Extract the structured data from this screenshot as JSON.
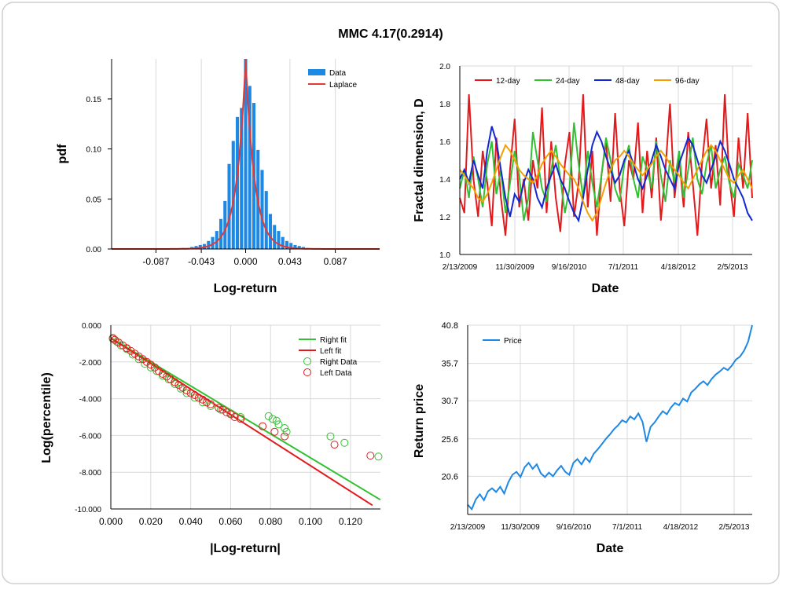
{
  "page_title": "MMC 4.17(0.2914)",
  "chart_data": [
    {
      "type": "bar",
      "xlabel": "Log-return",
      "ylabel": "pdf",
      "xlim": [
        -0.13,
        0.13
      ],
      "ylim": [
        0,
        0.19
      ],
      "x_ticks": [
        -0.087,
        -0.043,
        0.0,
        0.043,
        0.087
      ],
      "x_tick_labels": [
        "-0.087",
        "-0.043",
        "0.000",
        "0.043",
        "0.087"
      ],
      "y_ticks": [
        0,
        0.05,
        0.1,
        0.15
      ],
      "y_tick_labels": [
        "0.00",
        "0.05",
        "0.10",
        "0.15"
      ],
      "legend": {
        "position": "top-right",
        "entries": [
          "Data",
          "Laplace"
        ]
      },
      "series": [
        {
          "name": "Data",
          "type": "bar",
          "color": "#1e88e5",
          "x": [
            -0.06,
            -0.056,
            -0.052,
            -0.048,
            -0.044,
            -0.04,
            -0.036,
            -0.032,
            -0.028,
            -0.024,
            -0.02,
            -0.016,
            -0.012,
            -0.008,
            -0.004,
            0.0,
            0.004,
            0.008,
            0.012,
            0.016,
            0.02,
            0.024,
            0.028,
            0.032,
            0.036,
            0.04,
            0.044,
            0.048,
            0.052,
            0.056,
            0.06
          ],
          "values": [
            0.001,
            0.001,
            0.002,
            0.003,
            0.004,
            0.005,
            0.008,
            0.012,
            0.018,
            0.03,
            0.048,
            0.085,
            0.108,
            0.132,
            0.141,
            0.19,
            0.163,
            0.146,
            0.099,
            0.079,
            0.058,
            0.035,
            0.024,
            0.018,
            0.012,
            0.008,
            0.006,
            0.004,
            0.003,
            0.002,
            0.001
          ]
        },
        {
          "name": "Laplace",
          "type": "line",
          "color": "#e53935",
          "peak": 0.189,
          "center": 0.0,
          "scale": 0.0087
        }
      ]
    },
    {
      "type": "line",
      "xlabel": "Date",
      "ylabel": "Fractal dimension, D",
      "ylim": [
        1.0,
        2.0
      ],
      "y_ticks": [
        1.0,
        1.2,
        1.4,
        1.6,
        1.8,
        2.0
      ],
      "y_tick_labels": [
        "1.0",
        "1.2",
        "1.4",
        "1.6",
        "1.8",
        "2.0"
      ],
      "x_tick_labels": [
        "2/13/2009",
        "11/30/2009",
        "9/16/2010",
        "7/1/2011",
        "4/18/2012",
        "2/5/2013"
      ],
      "grid": true,
      "legend": {
        "position": "top",
        "entries": [
          "12-day",
          "24-day",
          "48-day",
          "96-day"
        ]
      },
      "series": [
        {
          "name": "12-day",
          "color": "#e31a1c",
          "values": [
            1.3,
            1.22,
            1.85,
            1.4,
            1.2,
            1.55,
            1.38,
            1.15,
            1.62,
            1.3,
            1.1,
            1.45,
            1.72,
            1.25,
            1.4,
            1.18,
            1.5,
            1.35,
            1.78,
            1.22,
            1.6,
            1.3,
            1.12,
            1.48,
            1.65,
            1.2,
            1.38,
            1.85,
            1.25,
            1.55,
            1.1,
            1.42,
            1.6,
            1.28,
            1.75,
            1.35,
            1.15,
            1.5,
            1.4,
            1.7,
            1.22,
            1.55,
            1.3,
            1.62,
            1.18,
            1.45,
            1.8,
            1.3,
            1.52,
            1.25,
            1.65,
            1.38,
            1.1,
            1.48,
            1.72,
            1.35,
            1.58,
            1.26,
            1.85,
            1.4,
            1.2,
            1.62,
            1.35,
            1.75,
            1.3
          ]
        },
        {
          "name": "24-day",
          "color": "#33c033",
          "values": [
            1.35,
            1.45,
            1.3,
            1.52,
            1.4,
            1.25,
            1.48,
            1.6,
            1.32,
            1.45,
            1.22,
            1.38,
            1.55,
            1.42,
            1.18,
            1.3,
            1.65,
            1.5,
            1.35,
            1.28,
            1.45,
            1.58,
            1.4,
            1.22,
            1.35,
            1.7,
            1.48,
            1.3,
            1.55,
            1.38,
            1.25,
            1.42,
            1.62,
            1.5,
            1.35,
            1.28,
            1.48,
            1.58,
            1.4,
            1.3,
            1.52,
            1.45,
            1.35,
            1.6,
            1.42,
            1.28,
            1.5,
            1.38,
            1.55,
            1.3,
            1.45,
            1.62,
            1.4,
            1.32,
            1.48,
            1.58,
            1.35,
            1.45,
            1.52,
            1.38,
            1.3,
            1.48,
            1.42,
            1.35,
            1.5
          ]
        },
        {
          "name": "48-day",
          "color": "#1428d0",
          "values": [
            1.4,
            1.45,
            1.38,
            1.5,
            1.42,
            1.35,
            1.55,
            1.68,
            1.6,
            1.45,
            1.3,
            1.2,
            1.32,
            1.28,
            1.38,
            1.45,
            1.4,
            1.3,
            1.25,
            1.35,
            1.42,
            1.48,
            1.4,
            1.35,
            1.28,
            1.22,
            1.18,
            1.3,
            1.45,
            1.58,
            1.65,
            1.6,
            1.52,
            1.45,
            1.38,
            1.42,
            1.5,
            1.55,
            1.48,
            1.4,
            1.35,
            1.42,
            1.5,
            1.58,
            1.52,
            1.45,
            1.4,
            1.35,
            1.48,
            1.55,
            1.62,
            1.58,
            1.5,
            1.42,
            1.38,
            1.45,
            1.52,
            1.6,
            1.55,
            1.48,
            1.4,
            1.35,
            1.3,
            1.22,
            1.18
          ]
        },
        {
          "name": "96-day",
          "color": "#f4a000",
          "values": [
            1.45,
            1.42,
            1.38,
            1.35,
            1.3,
            1.28,
            1.32,
            1.38,
            1.45,
            1.52,
            1.58,
            1.55,
            1.5,
            1.45,
            1.42,
            1.4,
            1.38,
            1.42,
            1.48,
            1.52,
            1.55,
            1.52,
            1.48,
            1.45,
            1.42,
            1.4,
            1.35,
            1.28,
            1.22,
            1.18,
            1.22,
            1.3,
            1.38,
            1.45,
            1.5,
            1.52,
            1.55,
            1.52,
            1.48,
            1.45,
            1.42,
            1.45,
            1.48,
            1.52,
            1.55,
            1.52,
            1.48,
            1.45,
            1.42,
            1.38,
            1.35,
            1.4,
            1.45,
            1.5,
            1.55,
            1.58,
            1.55,
            1.5,
            1.45,
            1.4,
            1.38,
            1.42,
            1.45,
            1.4,
            1.35
          ]
        }
      ]
    },
    {
      "type": "scatter",
      "xlabel": "|Log-return|",
      "ylabel": "Log(percentile)",
      "xlim": [
        0,
        0.135
      ],
      "ylim": [
        -10,
        0
      ],
      "x_ticks": [
        0.0,
        0.02,
        0.04,
        0.06,
        0.08,
        0.1,
        0.12
      ],
      "x_tick_labels": [
        "0.000",
        "0.020",
        "0.040",
        "0.060",
        "0.080",
        "0.100",
        "0.120"
      ],
      "y_ticks": [
        0,
        -2,
        -4,
        -6,
        -8,
        -10
      ],
      "y_tick_labels": [
        "0.000",
        "-2.000",
        "-4.000",
        "-6.000",
        "-8.000",
        "-10.000"
      ],
      "legend": {
        "position": "top-right",
        "entries": [
          "Right fit",
          "Left fit",
          "Right Data",
          "Left Data"
        ]
      },
      "series": [
        {
          "name": "Right fit",
          "type": "line",
          "color": "#33c033",
          "x": [
            0,
            0.135
          ],
          "y": [
            -0.7,
            -9.5
          ]
        },
        {
          "name": "Left fit",
          "type": "line",
          "color": "#e31a1c",
          "x": [
            0,
            0.131
          ],
          "y": [
            -0.7,
            -9.8
          ]
        },
        {
          "name": "Right Data",
          "type": "scatter",
          "color": "#33c033",
          "x": [
            0.001,
            0.003,
            0.005,
            0.008,
            0.011,
            0.014,
            0.017,
            0.02,
            0.023,
            0.026,
            0.029,
            0.032,
            0.035,
            0.038,
            0.042,
            0.046,
            0.05,
            0.055,
            0.06,
            0.065,
            0.079,
            0.081,
            0.083,
            0.084,
            0.087,
            0.088,
            0.11,
            0.117,
            0.134
          ],
          "y": [
            -0.75,
            -0.9,
            -1.1,
            -1.3,
            -1.6,
            -1.85,
            -2.1,
            -2.3,
            -2.5,
            -2.75,
            -2.95,
            -3.2,
            -3.45,
            -3.7,
            -3.95,
            -4.2,
            -4.4,
            -4.6,
            -4.8,
            -5.0,
            -4.95,
            -5.1,
            -5.2,
            -5.4,
            -5.6,
            -5.8,
            -6.05,
            -6.4,
            -7.15
          ]
        },
        {
          "name": "Left Data",
          "type": "scatter",
          "color": "#e31a1c",
          "x": [
            0.001,
            0.002,
            0.004,
            0.006,
            0.008,
            0.01,
            0.012,
            0.014,
            0.016,
            0.018,
            0.02,
            0.022,
            0.024,
            0.026,
            0.028,
            0.03,
            0.032,
            0.034,
            0.036,
            0.038,
            0.04,
            0.042,
            0.044,
            0.046,
            0.048,
            0.05,
            0.054,
            0.056,
            0.058,
            0.06,
            0.062,
            0.065,
            0.076,
            0.082,
            0.087,
            0.112,
            0.13
          ],
          "y": [
            -0.7,
            -0.8,
            -0.95,
            -1.1,
            -1.25,
            -1.4,
            -1.55,
            -1.7,
            -1.85,
            -2.0,
            -2.15,
            -2.3,
            -2.5,
            -2.65,
            -2.8,
            -2.95,
            -3.1,
            -3.25,
            -3.4,
            -3.55,
            -3.7,
            -3.8,
            -3.95,
            -4.05,
            -4.2,
            -4.3,
            -4.5,
            -4.6,
            -4.75,
            -4.85,
            -5.0,
            -5.1,
            -5.5,
            -5.8,
            -6.05,
            -6.5,
            -7.1
          ]
        }
      ]
    },
    {
      "type": "line",
      "xlabel": "Date",
      "ylabel": "Return price",
      "ylim": [
        15.5,
        40.8
      ],
      "y_ticks": [
        20.6,
        25.6,
        30.7,
        35.7,
        40.8
      ],
      "y_tick_labels": [
        "20.6",
        "25.6",
        "30.7",
        "35.7",
        "40.8"
      ],
      "x_tick_labels": [
        "2/13/2009",
        "11/30/2009",
        "9/16/2010",
        "7/1/2011",
        "4/18/2012",
        "2/5/2013"
      ],
      "grid": true,
      "legend": {
        "position": "top-left",
        "entries": [
          "Price"
        ]
      },
      "series": [
        {
          "name": "Price",
          "color": "#1e88e5",
          "values": [
            16.8,
            16.2,
            17.5,
            18.2,
            17.4,
            18.6,
            19.0,
            18.5,
            19.2,
            18.3,
            19.8,
            20.8,
            21.2,
            20.5,
            21.8,
            22.4,
            21.6,
            22.2,
            21.0,
            20.5,
            21.1,
            20.6,
            21.4,
            22.0,
            21.2,
            20.8,
            22.4,
            22.9,
            22.2,
            23.1,
            22.5,
            23.6,
            24.2,
            24.9,
            25.6,
            26.2,
            26.9,
            27.4,
            28.1,
            27.8,
            28.6,
            28.2,
            29.0,
            27.9,
            25.2,
            27.2,
            27.8,
            28.6,
            29.3,
            28.9,
            29.8,
            30.4,
            30.1,
            31.0,
            30.6,
            31.8,
            32.3,
            32.9,
            33.3,
            32.8,
            33.6,
            34.2,
            34.6,
            35.1,
            34.8,
            35.4,
            36.2,
            36.6,
            37.4,
            38.6,
            40.8
          ]
        }
      ]
    }
  ]
}
